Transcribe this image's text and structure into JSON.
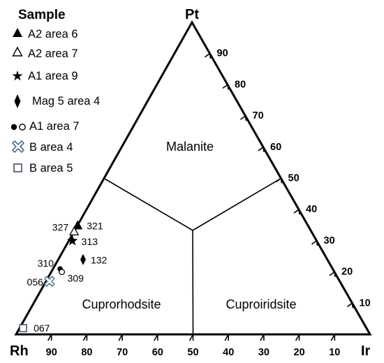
{
  "legend": {
    "title": "Sample",
    "items": [
      {
        "marker": "filled-triangle",
        "label": "A2 area 6"
      },
      {
        "marker": "open-triangle",
        "label": "A2 area 7"
      },
      {
        "marker": "filled-star",
        "label": "A1 area 9"
      },
      {
        "marker": "filled-diamond",
        "label": "Mag 5 area 4"
      },
      {
        "marker": "filled-and-open-circle",
        "label": "A1 area 7"
      },
      {
        "marker": "cross-open-x",
        "label": "B area 4"
      },
      {
        "marker": "open-square",
        "label": "B area 5"
      }
    ]
  },
  "vertices": {
    "top": "Pt",
    "left": "Rh",
    "right": "Ir"
  },
  "fields": [
    {
      "label": "Malanite"
    },
    {
      "label": "Cuprorhodsite"
    },
    {
      "label": "Cuproiridsite"
    }
  ],
  "chart_data": {
    "type": "ternary",
    "components": [
      "Pt",
      "Rh",
      "Ir"
    ],
    "pt_ticks": [
      "90",
      "80",
      "70",
      "60",
      "50",
      "40",
      "30",
      "20",
      "10"
    ],
    "rh_ticks": [
      "90",
      "80",
      "70",
      "60",
      "50",
      "40",
      "30",
      "20",
      "10"
    ],
    "field_boundaries": [
      {
        "from": {
          "pt": 50,
          "rh": 50,
          "ir": 0
        },
        "to": {
          "pt": 33.3,
          "rh": 33.3,
          "ir": 33.3
        }
      },
      {
        "from": {
          "pt": 50,
          "rh": 0,
          "ir": 50
        },
        "to": {
          "pt": 33.3,
          "rh": 33.3,
          "ir": 33.3
        }
      },
      {
        "from": {
          "pt": 0,
          "rh": 50,
          "ir": 50
        },
        "to": {
          "pt": 33.3,
          "rh": 33.3,
          "ir": 33.3
        }
      }
    ],
    "points": [
      {
        "id": "321",
        "sample": "A2 area 6",
        "marker": "filled-triangle",
        "pt": 35,
        "rh": 65,
        "ir": 0
      },
      {
        "id": "327",
        "sample": "A2 area 7",
        "marker": "open-triangle",
        "pt": 33,
        "rh": 67,
        "ir": 0
      },
      {
        "id": "313",
        "sample": "A1 area 9",
        "marker": "filled-star",
        "pt": 30,
        "rh": 69,
        "ir": 1
      },
      {
        "id": "132",
        "sample": "Mag 5 area 4",
        "marker": "filled-diamond",
        "pt": 24,
        "rh": 69,
        "ir": 7
      },
      {
        "id": "310",
        "sample": "A1 area 7",
        "marker": "filled-circle",
        "pt": 21,
        "rh": 77,
        "ir": 2
      },
      {
        "id": "309",
        "sample": "A1 area 7",
        "marker": "open-circle",
        "pt": 20,
        "rh": 77,
        "ir": 3
      },
      {
        "id": "056",
        "sample": "B area 4",
        "marker": "cross-open-x",
        "pt": 17,
        "rh": 82,
        "ir": 1
      },
      {
        "id": "067",
        "sample": "B area 5",
        "marker": "open-square",
        "pt": 2,
        "rh": 97,
        "ir": 1
      }
    ]
  }
}
